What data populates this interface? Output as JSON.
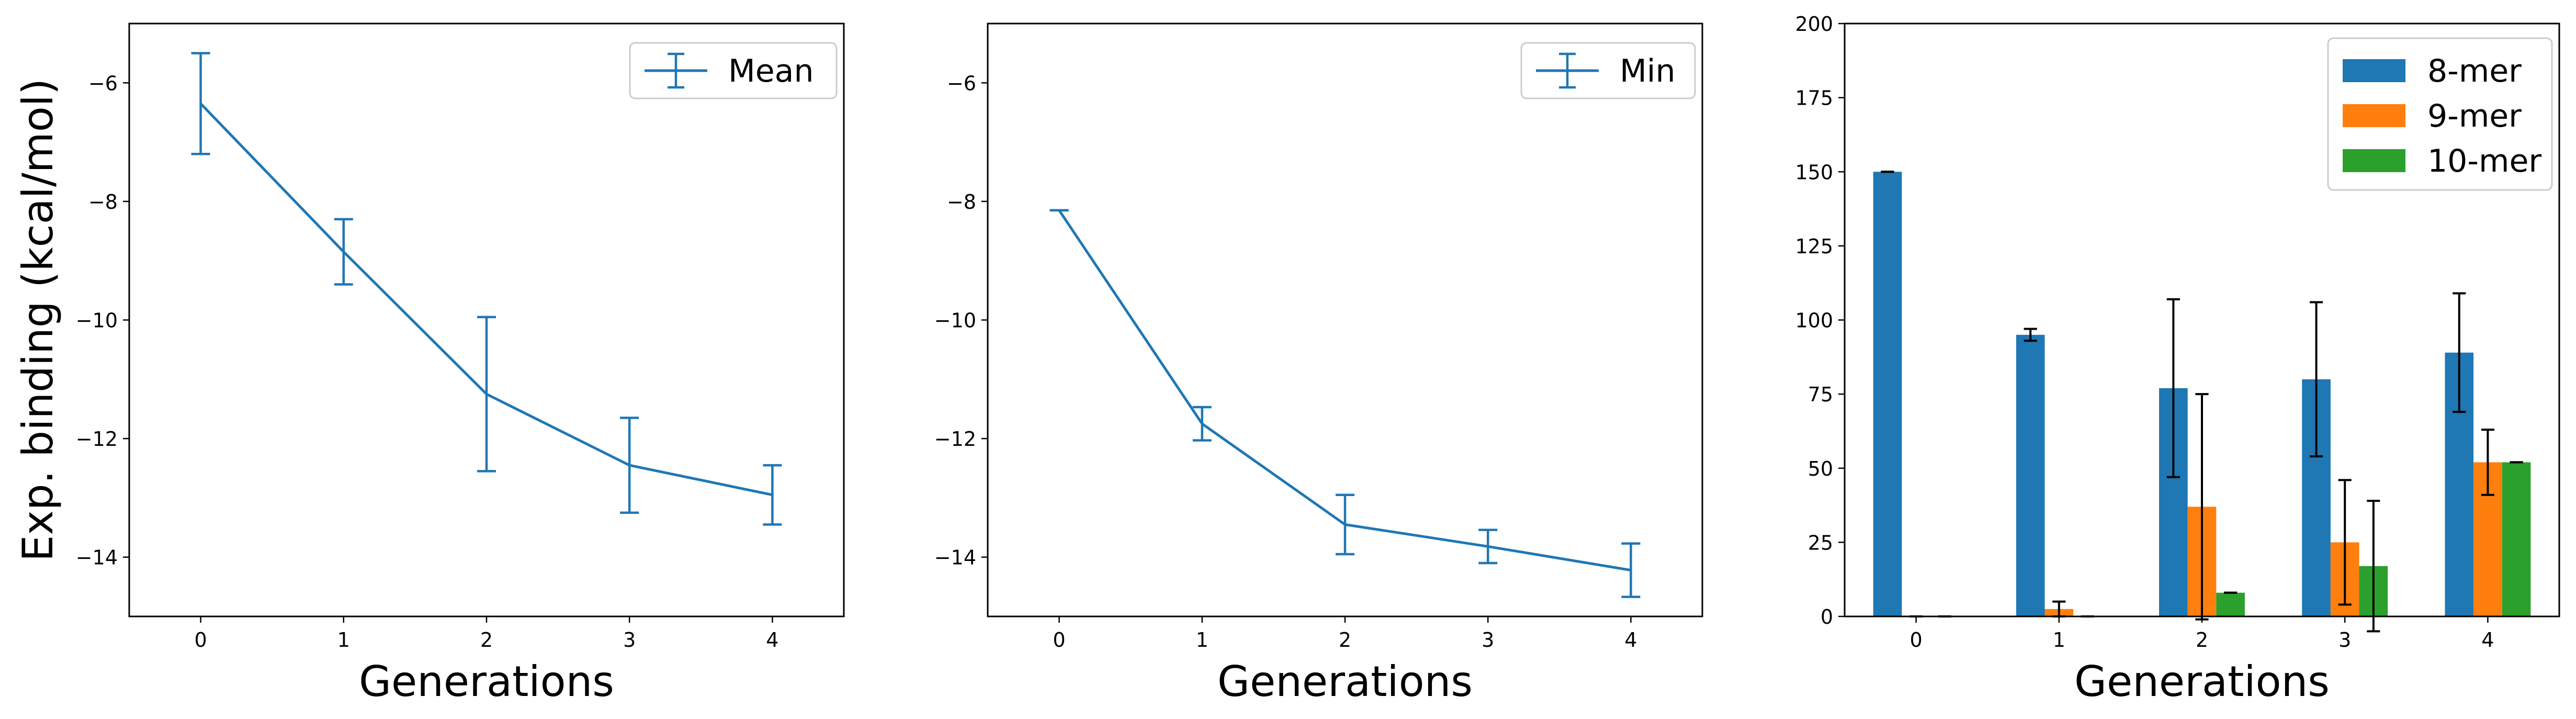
{
  "chart_data": [
    {
      "type": "line",
      "title": "",
      "xlabel": "Generations",
      "ylabel": "Exp. binding (kcal/mol)",
      "x": [
        0,
        1,
        2,
        3,
        4
      ],
      "xlim": [
        -0.5,
        4.5
      ],
      "ylim": [
        -15,
        -5
      ],
      "xticks": [
        "0",
        "1",
        "2",
        "3",
        "4"
      ],
      "yticks": [
        "−6",
        "−8",
        "−10",
        "−12",
        "−14"
      ],
      "ytick_values": [
        -6,
        -8,
        -10,
        -12,
        -14
      ],
      "grid": false,
      "legend_position": "top-right",
      "series": [
        {
          "name": "Mean",
          "color": "#1f77b4",
          "values": [
            -6.35,
            -8.85,
            -11.25,
            -12.45,
            -12.95
          ],
          "error": [
            0.85,
            0.55,
            1.3,
            0.8,
            0.5
          ]
        }
      ]
    },
    {
      "type": "line",
      "title": "",
      "xlabel": "Generations",
      "ylabel": "",
      "x": [
        0,
        1,
        2,
        3,
        4
      ],
      "xlim": [
        -0.5,
        4.5
      ],
      "ylim": [
        -15,
        -5
      ],
      "xticks": [
        "0",
        "1",
        "2",
        "3",
        "4"
      ],
      "yticks": [
        "−6",
        "−8",
        "−10",
        "−12",
        "−14"
      ],
      "ytick_values": [
        -6,
        -8,
        -10,
        -12,
        -14
      ],
      "grid": false,
      "legend_position": "top-right",
      "series": [
        {
          "name": "Min",
          "color": "#1f77b4",
          "values": [
            -8.15,
            -11.75,
            -13.45,
            -13.82,
            -14.22
          ],
          "error": [
            0.0,
            0.28,
            0.5,
            0.28,
            0.45
          ]
        }
      ]
    },
    {
      "type": "bar",
      "title": "",
      "xlabel": "Generations",
      "ylabel": "",
      "categories": [
        "0",
        "1",
        "2",
        "3",
        "4"
      ],
      "ylim": [
        0,
        200
      ],
      "yticks": [
        "0",
        "25",
        "50",
        "75",
        "100",
        "125",
        "150",
        "175",
        "200"
      ],
      "ytick_values": [
        0,
        25,
        50,
        75,
        100,
        125,
        150,
        175,
        200
      ],
      "grid": false,
      "legend_position": "top-right",
      "series": [
        {
          "name": "8-mer",
          "color": "#1f77b4",
          "values": [
            150,
            95,
            77,
            80,
            89
          ],
          "error": [
            0,
            2,
            30,
            26,
            20
          ]
        },
        {
          "name": "9-mer",
          "color": "#ff7f0e",
          "values": [
            0,
            2.5,
            37,
            25,
            52
          ],
          "error": [
            0,
            2.5,
            38,
            21,
            11
          ]
        },
        {
          "name": "10-mer",
          "color": "#2ca02c",
          "values": [
            0,
            0,
            8,
            17,
            52
          ],
          "error": [
            0,
            0,
            0,
            22,
            0
          ]
        }
      ]
    }
  ]
}
